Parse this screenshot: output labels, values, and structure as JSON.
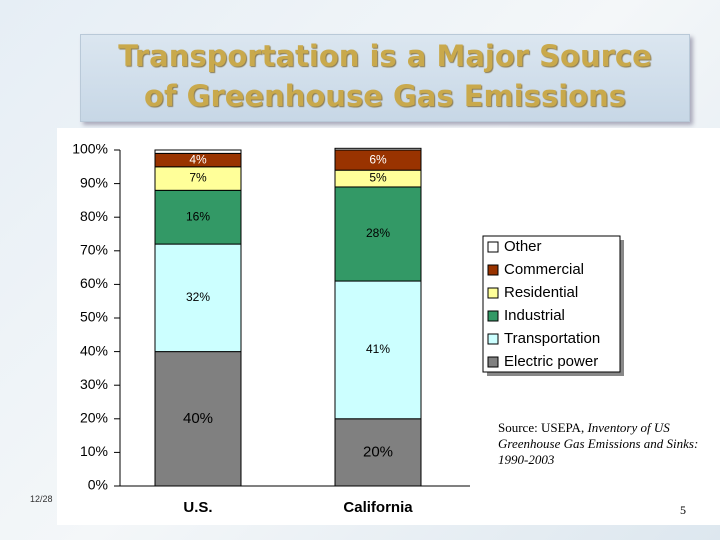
{
  "slide": {
    "title_line1": "Transportation is a Major Source",
    "title_line2": "of Greenhouse Gas Emissions",
    "date": "12/28",
    "page": "5",
    "source": {
      "prefix": "Source: USEPA, ",
      "title": "Inventory of US Greenhouse Gas Emissions and Sinks: 1990-2003"
    }
  },
  "chart_data": {
    "type": "stacked_bar",
    "categories": [
      "U.S.",
      "California"
    ],
    "series": [
      {
        "name": "Electric power",
        "color": "#808080",
        "values": [
          40,
          20
        ],
        "value_labels": [
          "40%",
          "20%"
        ]
      },
      {
        "name": "Transportation",
        "color": "#ccffff",
        "values": [
          32,
          41
        ],
        "value_labels": [
          "32%",
          "41%"
        ]
      },
      {
        "name": "Industrial",
        "color": "#339966",
        "values": [
          16,
          28
        ],
        "value_labels": [
          "16%",
          "28%"
        ]
      },
      {
        "name": "Residential",
        "color": "#ffff99",
        "values": [
          7,
          5
        ],
        "value_labels": [
          "7%",
          "5%"
        ]
      },
      {
        "name": "Commercial",
        "color": "#993300",
        "values": [
          4,
          6
        ],
        "value_labels": [
          "4%",
          "6%"
        ]
      },
      {
        "name": "Other",
        "color": "#ffffff",
        "values": [
          1,
          0.5
        ]
      }
    ],
    "ylim": [
      0,
      100
    ],
    "yticks": [
      {
        "value": 0,
        "label": "0%"
      },
      {
        "value": 10,
        "label": "10%"
      },
      {
        "value": 20,
        "label": "20%"
      },
      {
        "value": 30,
        "label": "30%"
      },
      {
        "value": 40,
        "label": "40%"
      },
      {
        "value": 50,
        "label": "50%"
      },
      {
        "value": 60,
        "label": "60%"
      },
      {
        "value": 70,
        "label": "70%"
      },
      {
        "value": 80,
        "label": "80%"
      },
      {
        "value": 90,
        "label": "90%"
      },
      {
        "value": 100,
        "label": "100%"
      }
    ],
    "legend": "right"
  }
}
